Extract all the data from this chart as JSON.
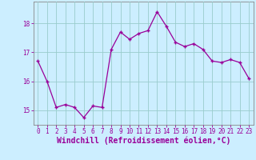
{
  "x": [
    0,
    1,
    2,
    3,
    4,
    5,
    6,
    7,
    8,
    9,
    10,
    11,
    12,
    13,
    14,
    15,
    16,
    17,
    18,
    19,
    20,
    21,
    22,
    23
  ],
  "y": [
    16.7,
    16.0,
    15.1,
    15.2,
    15.1,
    14.75,
    15.15,
    15.1,
    17.1,
    17.7,
    17.45,
    17.65,
    17.75,
    18.4,
    17.9,
    17.35,
    17.2,
    17.3,
    17.1,
    16.7,
    16.65,
    16.75,
    16.65,
    16.1
  ],
  "line_color": "#990099",
  "marker": "+",
  "background_color": "#cceeff",
  "grid_color": "#99cccc",
  "axis_color": "#888888",
  "xlabel": "Windchill (Refroidissement éolien,°C)",
  "xlabel_color": "#990099",
  "tick_color": "#990099",
  "ylim": [
    14.5,
    18.75
  ],
  "yticks": [
    15,
    16,
    17,
    18
  ],
  "xlim": [
    -0.5,
    23.5
  ],
  "xticks": [
    0,
    1,
    2,
    3,
    4,
    5,
    6,
    7,
    8,
    9,
    10,
    11,
    12,
    13,
    14,
    15,
    16,
    17,
    18,
    19,
    20,
    21,
    22,
    23
  ],
  "xtick_labels": [
    "0",
    "1",
    "2",
    "3",
    "4",
    "5",
    "6",
    "7",
    "8",
    "9",
    "10",
    "11",
    "12",
    "13",
    "14",
    "15",
    "16",
    "17",
    "18",
    "19",
    "20",
    "21",
    "22",
    "23"
  ],
  "fontsize_ticks": 5.5,
  "fontsize_xlabel": 7.0,
  "linewidth": 0.9,
  "markersize": 3.5,
  "markeredgewidth": 1.0
}
